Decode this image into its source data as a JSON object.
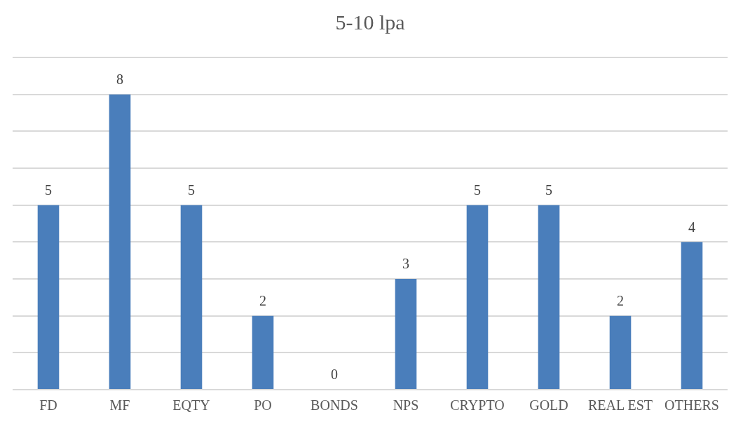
{
  "chart_data": {
    "type": "bar",
    "title": "5-10 lpa",
    "categories": [
      "FD",
      "MF",
      "EQTY",
      "PO",
      "BONDS",
      "NPS",
      "CRYPTO",
      "GOLD",
      "REAL EST",
      "OTHERS"
    ],
    "values": [
      5,
      8,
      5,
      2,
      0,
      3,
      5,
      5,
      2,
      4
    ],
    "color": "#4a7ebb",
    "ylim": [
      0,
      9
    ],
    "yticks": [
      {
        "value": 0,
        "label": null
      },
      {
        "value": 1,
        "label": null
      },
      {
        "value": 2,
        "label": null
      },
      {
        "value": 3,
        "label": null
      },
      {
        "value": 4,
        "label": null
      },
      {
        "value": 5,
        "label": null
      },
      {
        "value": 6,
        "label": null
      },
      {
        "value": 7,
        "label": null
      },
      {
        "value": 8,
        "label": null
      },
      {
        "value": 9,
        "label": null
      }
    ],
    "tick_labels": "x",
    "grid": "y",
    "data_labels": true,
    "legend": false
  }
}
